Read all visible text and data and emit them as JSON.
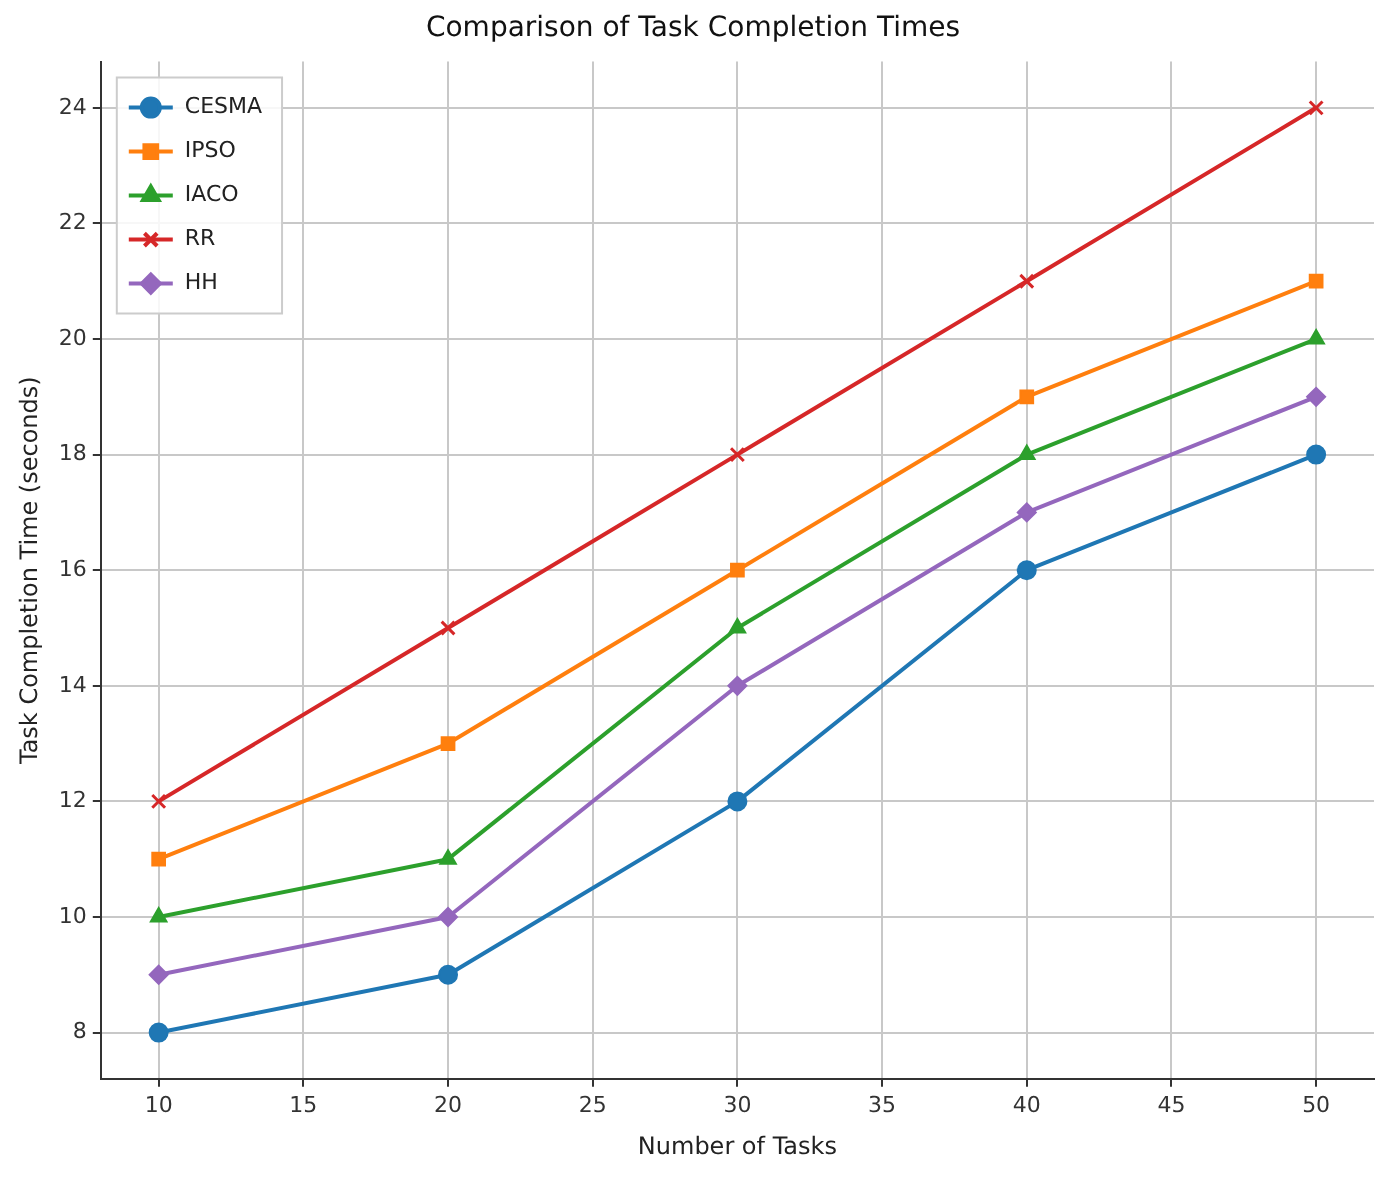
{
  "chart_data": {
    "type": "line",
    "title": "Comparison of Task Completion Times",
    "xlabel": "Number of Tasks",
    "ylabel": "Task Completion Time (seconds)",
    "x": [
      10,
      20,
      30,
      40,
      50
    ],
    "series": [
      {
        "name": "CESMA",
        "color": "#1f77b4",
        "marker": "circle",
        "values": [
          8,
          9,
          12,
          16,
          18
        ]
      },
      {
        "name": "IPSO",
        "color": "#ff7f0e",
        "marker": "square",
        "values": [
          11,
          13,
          16,
          19,
          21
        ]
      },
      {
        "name": "IACO",
        "color": "#2ca02c",
        "marker": "triangle",
        "values": [
          10,
          11,
          15,
          18,
          20
        ]
      },
      {
        "name": "RR",
        "color": "#d62728",
        "marker": "cross",
        "values": [
          12,
          15,
          18,
          21,
          24
        ]
      },
      {
        "name": "HH",
        "color": "#9467bd",
        "marker": "diamond",
        "values": [
          9,
          10,
          14,
          17,
          19
        ]
      }
    ],
    "xlim": [
      8,
      52
    ],
    "xticks": [
      10,
      15,
      20,
      25,
      30,
      35,
      40,
      45,
      50
    ],
    "ylim": [
      7.2,
      24.8
    ],
    "yticks": [
      8,
      10,
      12,
      14,
      16,
      18,
      20,
      22,
      24
    ],
    "grid": true,
    "legend": "top left",
    "line_style": "solid"
  }
}
